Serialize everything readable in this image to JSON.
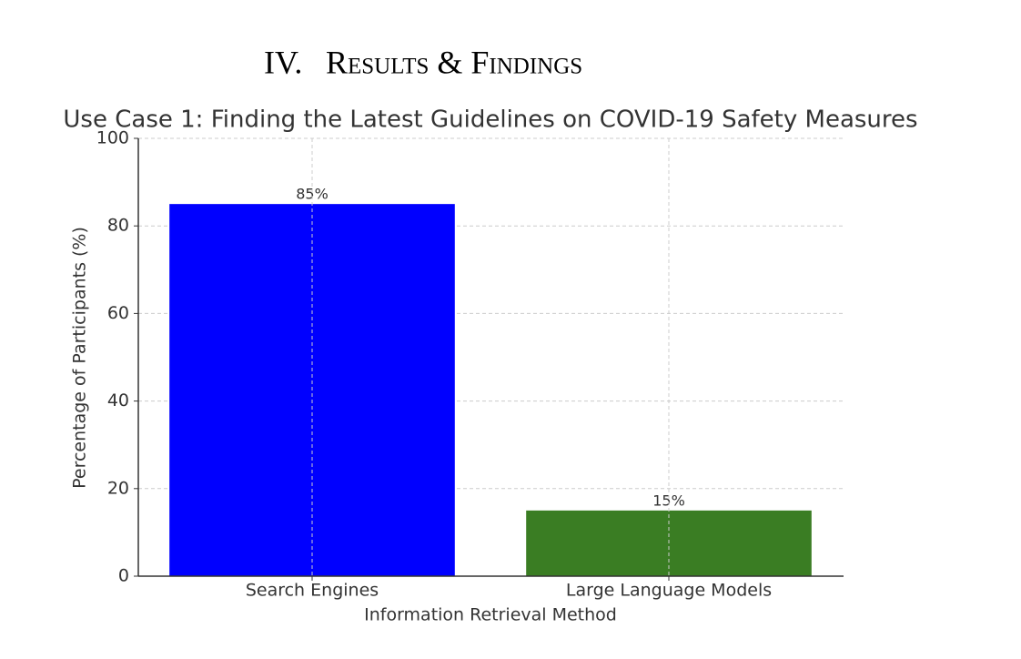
{
  "heading": {
    "number": "IV.",
    "title": "Results & Findings"
  },
  "chart_data": {
    "type": "bar",
    "title": "Use Case 1: Finding the Latest Guidelines on COVID-19 Safety Measures",
    "x_label": "Information Retrieval Method",
    "y_label": "Percentage of Participants (%)",
    "categories": [
      "Search Engines",
      "Large Language Models"
    ],
    "values": [
      85,
      15
    ],
    "value_labels": [
      "85%",
      "15%"
    ],
    "colors": [
      "#0000ff",
      "#3a7d23"
    ],
    "ylim": [
      0,
      100
    ],
    "yticks": [
      0,
      20,
      40,
      60,
      80,
      100
    ],
    "grid": true
  }
}
